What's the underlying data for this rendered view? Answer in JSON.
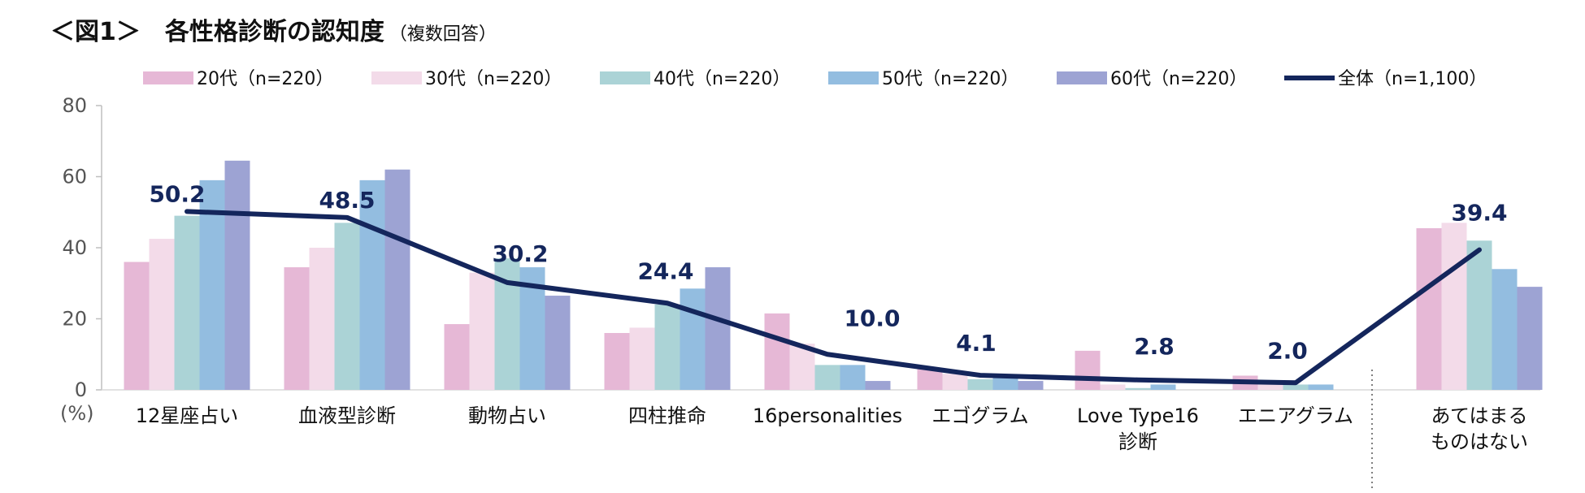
{
  "header": {
    "title": "＜図1＞　各性格診断の認知度",
    "subtitle": "（複数回答）"
  },
  "chart_data": {
    "type": "bar",
    "categories": [
      [
        "12星座占い"
      ],
      [
        "血液型診断"
      ],
      [
        "動物占い"
      ],
      [
        "四柱推命"
      ],
      [
        "16personalities"
      ],
      [
        "エゴグラム"
      ],
      [
        "Love Type16",
        "診断"
      ],
      [
        "エニアグラム"
      ],
      [
        "あてはまる",
        "ものはない"
      ]
    ],
    "ylim": [
      0,
      80
    ],
    "yticks": [
      0,
      20,
      40,
      60,
      80
    ],
    "y_unit_label": "(%)",
    "legend_position": "top",
    "series": [
      {
        "name": "20代（n=220）",
        "color": "#e6b8d6",
        "values": [
          36.0,
          34.5,
          18.5,
          16.0,
          21.5,
          6.0,
          11.0,
          4.0,
          45.5
        ]
      },
      {
        "name": "30代（n=220）",
        "color": "#f3dbe9",
        "values": [
          42.5,
          40.0,
          33.0,
          17.5,
          13.0,
          4.5,
          1.5,
          2.0,
          47.0
        ]
      },
      {
        "name": "40代（n=220）",
        "color": "#abd3d6",
        "values": [
          49.0,
          47.0,
          37.0,
          24.0,
          7.0,
          3.0,
          0.5,
          1.5,
          42.0
        ]
      },
      {
        "name": "50代（n=220）",
        "color": "#93bde0",
        "values": [
          59.0,
          59.0,
          34.5,
          28.5,
          7.0,
          4.0,
          1.5,
          1.5,
          34.0
        ]
      },
      {
        "name": "60代（n=220）",
        "color": "#9da3d3",
        "values": [
          64.5,
          62.0,
          26.5,
          34.5,
          2.5,
          2.5,
          0.0,
          0.0,
          29.0
        ]
      }
    ],
    "line_series": {
      "name": "全体（n=1,100）",
      "color": "#14265c",
      "values": [
        50.2,
        48.5,
        30.2,
        24.4,
        10.0,
        4.1,
        2.8,
        2.0,
        39.4
      ],
      "labels": [
        "50.2",
        "48.5",
        "30.2",
        "24.4",
        "10.0",
        "4.1",
        "2.8",
        "2.0",
        "39.4"
      ]
    },
    "separator_before_category_index": 8
  }
}
